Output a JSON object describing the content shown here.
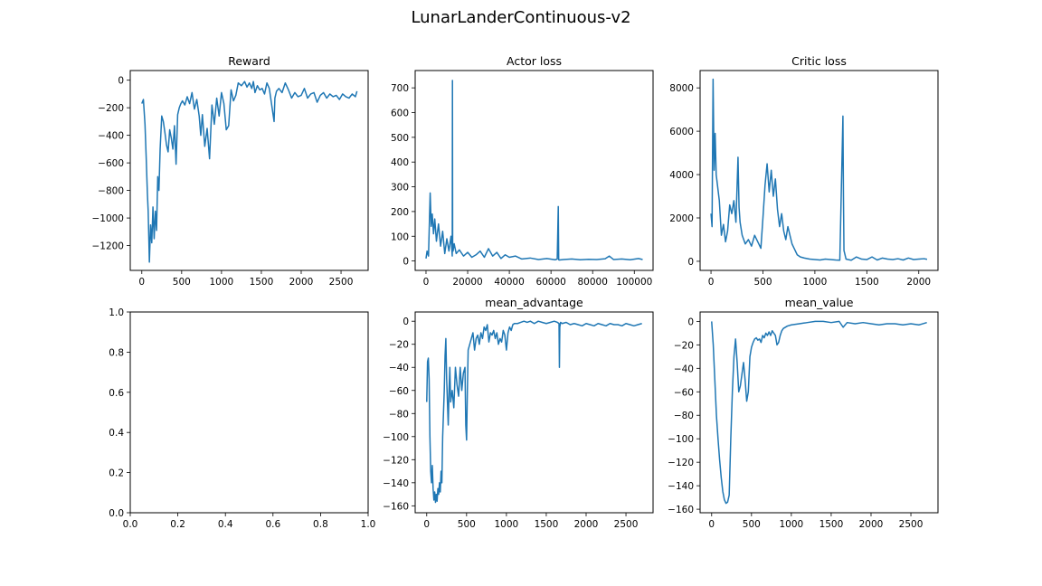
{
  "figure": {
    "title": "LunarLanderContinuous-v2",
    "line_color": "#1f77b4"
  },
  "chart_data": [
    {
      "id": "reward",
      "type": "line",
      "title": "Reward",
      "xlabel": "",
      "ylabel": "",
      "xlim": [
        -145,
        2840
      ],
      "ylim": [
        -1380,
        70
      ],
      "xticks": [
        0,
        500,
        1000,
        1500,
        2000,
        2500
      ],
      "yticks": [
        0,
        -200,
        -400,
        -600,
        -800,
        -1000,
        -1200
      ],
      "grid": false,
      "series": [
        {
          "x": [
            0,
            20,
            40,
            55,
            70,
            80,
            95,
            110,
            125,
            140,
            155,
            170,
            185,
            200,
            215,
            230,
            250,
            270,
            290,
            310,
            330,
            350,
            370,
            390,
            410,
            430,
            450,
            470,
            490,
            510,
            540,
            570,
            600,
            630,
            660,
            690,
            720,
            740,
            760,
            790,
            820,
            850,
            880,
            910,
            940,
            970,
            1000,
            1030,
            1060,
            1090,
            1120,
            1150,
            1180,
            1210,
            1250,
            1290,
            1320,
            1350,
            1380,
            1400,
            1420,
            1450,
            1480,
            1510,
            1540,
            1570,
            1600,
            1630,
            1660,
            1670,
            1690,
            1720,
            1760,
            1800,
            1840,
            1880,
            1920,
            1960,
            2000,
            2040,
            2080,
            2120,
            2160,
            2200,
            2240,
            2280,
            2320,
            2360,
            2400,
            2440,
            2480,
            2520,
            2560,
            2600,
            2640,
            2680,
            2700
          ],
          "y": [
            -170,
            -140,
            -320,
            -560,
            -820,
            -950,
            -1320,
            -1050,
            -1180,
            -920,
            -1150,
            -950,
            -1090,
            -700,
            -800,
            -500,
            -260,
            -300,
            -380,
            -470,
            -520,
            -360,
            -420,
            -500,
            -330,
            -610,
            -250,
            -200,
            -170,
            -150,
            -180,
            -120,
            -170,
            -90,
            -210,
            -140,
            -260,
            -400,
            -250,
            -480,
            -350,
            -570,
            -180,
            -320,
            -130,
            -260,
            -90,
            -170,
            -360,
            -330,
            -70,
            -150,
            -110,
            -20,
            -40,
            -10,
            -50,
            -20,
            -60,
            -10,
            -90,
            -40,
            -70,
            -60,
            -100,
            -20,
            -60,
            -180,
            -300,
            -130,
            -80,
            -60,
            -90,
            -20,
            -70,
            -130,
            -90,
            -120,
            -110,
            -60,
            -130,
            -100,
            -90,
            -160,
            -110,
            -90,
            -130,
            -100,
            -120,
            -110,
            -140,
            -100,
            -120,
            -130,
            -100,
            -120,
            -80
          ]
        }
      ]
    },
    {
      "id": "actor_loss",
      "type": "line",
      "title": "Actor loss",
      "xlabel": "",
      "ylabel": "",
      "xlim": [
        -5200,
        109000
      ],
      "ylim": [
        -38,
        770
      ],
      "xticks": [
        0,
        20000,
        40000,
        60000,
        80000,
        100000
      ],
      "yticks": [
        0,
        100,
        200,
        300,
        400,
        500,
        600,
        700
      ],
      "grid": false,
      "series": [
        {
          "x": [
            0,
            500,
            1200,
            2000,
            2500,
            3000,
            3600,
            4200,
            5000,
            6000,
            7000,
            8000,
            9000,
            10000,
            11000,
            12000,
            12600,
            12700,
            12800,
            13000,
            13500,
            14500,
            16000,
            18000,
            20000,
            22000,
            24000,
            26000,
            28000,
            30000,
            32000,
            34000,
            36000,
            38000,
            40000,
            43000,
            46000,
            50000,
            54000,
            58000,
            62000,
            63000,
            63500,
            63700,
            64000,
            66000,
            70000,
            74000,
            78000,
            82000,
            86000,
            88000,
            90000,
            94000,
            98000,
            102000,
            104000
          ],
          "y": [
            10,
            40,
            20,
            275,
            140,
            190,
            110,
            170,
            80,
            150,
            60,
            120,
            30,
            90,
            40,
            100,
            20,
            730,
            50,
            40,
            70,
            30,
            45,
            20,
            35,
            15,
            25,
            40,
            15,
            50,
            20,
            35,
            10,
            25,
            15,
            20,
            8,
            12,
            6,
            10,
            5,
            8,
            220,
            5,
            4,
            6,
            8,
            5,
            7,
            6,
            9,
            20,
            6,
            8,
            5,
            10,
            6
          ]
        }
      ]
    },
    {
      "id": "critic_loss",
      "type": "line",
      "title": "Critic loss",
      "xlabel": "",
      "ylabel": "",
      "xlim": [
        -105,
        2185
      ],
      "ylim": [
        -420,
        8800
      ],
      "xticks": [
        0,
        500,
        1000,
        1500,
        2000
      ],
      "yticks": [
        0,
        2000,
        4000,
        6000,
        8000
      ],
      "grid": false,
      "series": [
        {
          "x": [
            0,
            10,
            20,
            30,
            40,
            50,
            60,
            70,
            80,
            100,
            120,
            140,
            160,
            180,
            200,
            220,
            240,
            260,
            270,
            280,
            300,
            330,
            360,
            390,
            420,
            450,
            480,
            500,
            520,
            540,
            560,
            580,
            600,
            620,
            640,
            660,
            680,
            700,
            720,
            740,
            760,
            780,
            800,
            830,
            860,
            900,
            950,
            1000,
            1050,
            1100,
            1150,
            1200,
            1240,
            1270,
            1275,
            1280,
            1300,
            1350,
            1400,
            1450,
            1500,
            1550,
            1600,
            1650,
            1700,
            1750,
            1800,
            1850,
            1900,
            1950,
            2000,
            2050,
            2080
          ],
          "y": [
            2200,
            1600,
            8400,
            4200,
            5900,
            4000,
            3600,
            3200,
            2800,
            1200,
            1700,
            900,
            1400,
            2600,
            2200,
            2800,
            1800,
            4800,
            2500,
            1800,
            1200,
            800,
            1000,
            700,
            1200,
            900,
            600,
            2000,
            3500,
            4500,
            3200,
            4200,
            3000,
            3800,
            2400,
            1600,
            2200,
            1400,
            1000,
            1600,
            1200,
            800,
            600,
            300,
            200,
            150,
            100,
            80,
            60,
            100,
            80,
            60,
            50,
            6700,
            3000,
            500,
            100,
            50,
            200,
            100,
            80,
            200,
            60,
            150,
            100,
            80,
            120,
            60,
            150,
            80,
            100,
            120,
            90
          ]
        }
      ]
    },
    {
      "id": "empty",
      "type": "line",
      "title": "",
      "xlabel": "",
      "ylabel": "",
      "xlim": [
        0,
        1
      ],
      "ylim": [
        0,
        1
      ],
      "xticks": [
        0,
        0.2,
        0.4,
        0.6,
        0.8,
        1
      ],
      "xticklabels": [
        "0.0",
        "0.2",
        "0.4",
        "0.6",
        "0.8",
        "1.0"
      ],
      "yticks": [
        0,
        0.2,
        0.4,
        0.6,
        0.8,
        1
      ],
      "yticklabels": [
        "0.0",
        "0.2",
        "0.4",
        "0.6",
        "0.8",
        "1.0"
      ],
      "grid": false,
      "series": []
    },
    {
      "id": "mean_advantage",
      "type": "line",
      "title": "mean_advantage",
      "xlabel": "",
      "ylabel": "",
      "xlim": [
        -145,
        2840
      ],
      "ylim": [
        -166,
        8
      ],
      "xticks": [
        0,
        500,
        1000,
        1500,
        2000,
        2500
      ],
      "yticks": [
        0,
        -20,
        -40,
        -60,
        -80,
        -100,
        -120,
        -140,
        -160
      ],
      "grid": false,
      "series": [
        {
          "x": [
            0,
            10,
            20,
            30,
            40,
            50,
            60,
            70,
            80,
            90,
            100,
            110,
            120,
            130,
            140,
            150,
            160,
            170,
            180,
            190,
            200,
            210,
            220,
            230,
            240,
            250,
            260,
            270,
            280,
            290,
            300,
            320,
            340,
            360,
            380,
            400,
            420,
            440,
            460,
            480,
            490,
            500,
            510,
            520,
            540,
            560,
            580,
            600,
            620,
            640,
            660,
            680,
            700,
            720,
            740,
            760,
            780,
            800,
            820,
            840,
            860,
            880,
            900,
            920,
            940,
            960,
            980,
            1000,
            1020,
            1040,
            1060,
            1080,
            1100,
            1140,
            1180,
            1220,
            1260,
            1300,
            1350,
            1400,
            1450,
            1500,
            1550,
            1600,
            1640,
            1660,
            1665,
            1670,
            1680,
            1700,
            1750,
            1800,
            1850,
            1900,
            1950,
            2000,
            2050,
            2100,
            2150,
            2200,
            2250,
            2300,
            2350,
            2400,
            2450,
            2500,
            2550,
            2600,
            2650,
            2700
          ],
          "y": [
            -70,
            -35,
            -32,
            -50,
            -100,
            -130,
            -140,
            -125,
            -145,
            -155,
            -148,
            -157,
            -150,
            -156,
            -145,
            -150,
            -140,
            -148,
            -130,
            -140,
            -100,
            -80,
            -60,
            -30,
            -15,
            -50,
            -70,
            -90,
            -60,
            -40,
            -70,
            -60,
            -75,
            -40,
            -55,
            -65,
            -40,
            -60,
            -45,
            -40,
            -90,
            -103,
            -60,
            -25,
            -20,
            -15,
            -10,
            -25,
            -15,
            -12,
            -20,
            -10,
            -15,
            -5,
            -8,
            -3,
            -18,
            -10,
            -12,
            -8,
            -15,
            -10,
            -20,
            -15,
            -18,
            -8,
            -12,
            -25,
            -10,
            -5,
            -8,
            -3,
            -2,
            -2,
            -1,
            0,
            -1,
            0,
            -2,
            0,
            -1,
            -2,
            -1,
            0,
            -1,
            -2,
            -40,
            -5,
            -1,
            -2,
            -1,
            -3,
            -2,
            -3,
            -4,
            -2,
            -3,
            -4,
            -2,
            -3,
            -4,
            -2,
            -3,
            -3,
            -4,
            -2,
            -3,
            -4,
            -3,
            -2
          ]
        }
      ]
    },
    {
      "id": "mean_value",
      "type": "line",
      "title": "mean_value",
      "xlabel": "",
      "ylabel": "",
      "xlim": [
        -145,
        2840
      ],
      "ylim": [
        -163,
        8
      ],
      "xticks": [
        0,
        500,
        1000,
        1500,
        2000,
        2500
      ],
      "yticks": [
        0,
        -20,
        -40,
        -60,
        -80,
        -100,
        -120,
        -140,
        -160
      ],
      "grid": false,
      "series": [
        {
          "x": [
            0,
            20,
            40,
            60,
            80,
            100,
            120,
            140,
            160,
            180,
            200,
            220,
            240,
            260,
            280,
            300,
            320,
            340,
            360,
            380,
            400,
            420,
            440,
            460,
            480,
            500,
            520,
            540,
            560,
            580,
            600,
            620,
            640,
            660,
            680,
            700,
            720,
            740,
            760,
            780,
            800,
            820,
            840,
            860,
            880,
            900,
            950,
            1000,
            1100,
            1200,
            1300,
            1400,
            1500,
            1600,
            1650,
            1700,
            1800,
            1900,
            2000,
            2100,
            2200,
            2300,
            2400,
            2500,
            2600,
            2700
          ],
          "y": [
            0,
            -20,
            -50,
            -80,
            -100,
            -118,
            -133,
            -145,
            -152,
            -155,
            -154,
            -148,
            -100,
            -60,
            -30,
            -15,
            -35,
            -60,
            -55,
            -45,
            -35,
            -50,
            -68,
            -60,
            -30,
            -22,
            -18,
            -15,
            -14,
            -16,
            -15,
            -18,
            -12,
            -14,
            -10,
            -12,
            -9,
            -12,
            -8,
            -10,
            -12,
            -20,
            -18,
            -12,
            -8,
            -6,
            -4,
            -3,
            -2,
            -1,
            0,
            0,
            -1,
            0,
            -5,
            -1,
            -2,
            -1,
            -2,
            -3,
            -2,
            -2,
            -3,
            -2,
            -3,
            -1
          ]
        }
      ]
    }
  ]
}
